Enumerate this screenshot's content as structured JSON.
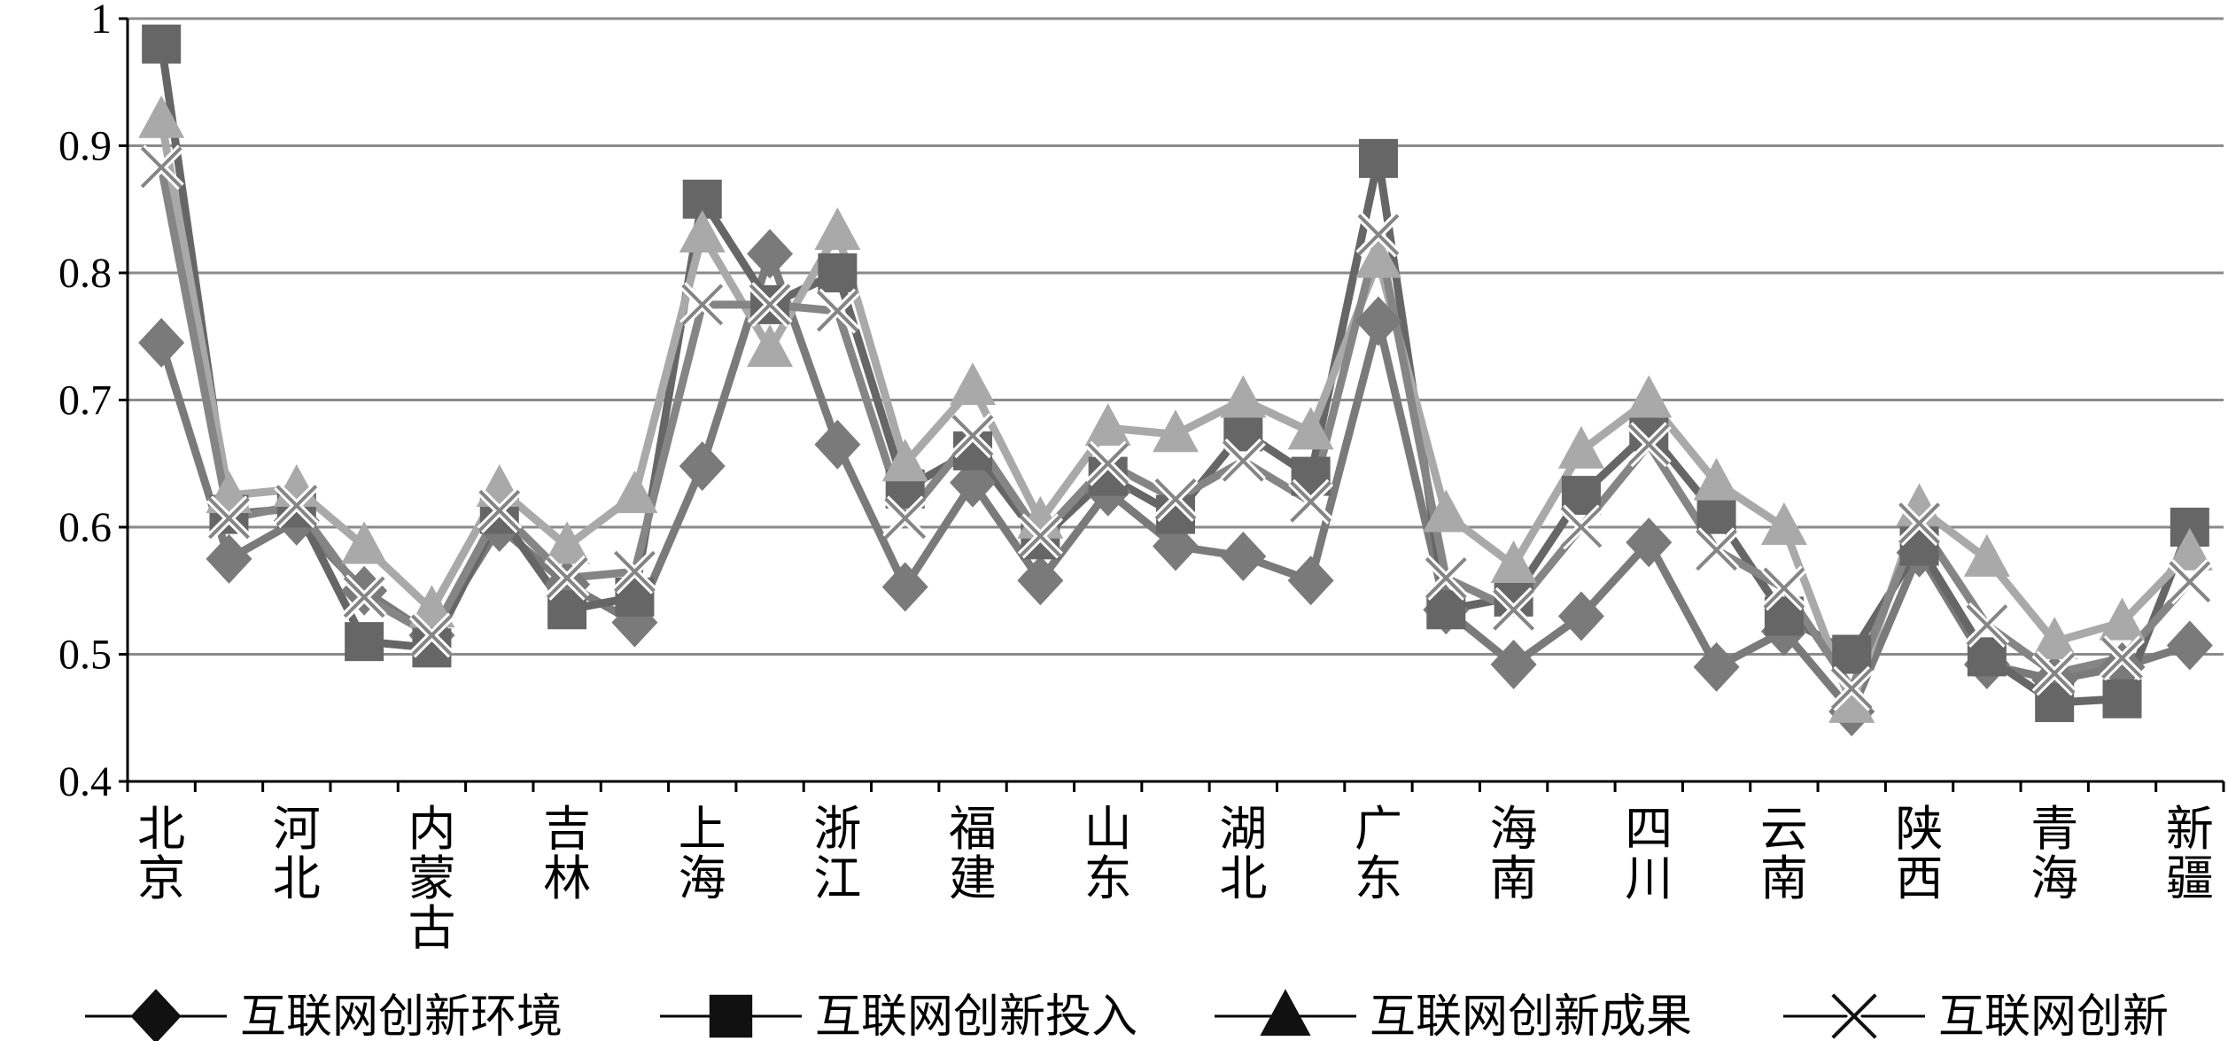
{
  "chart_data": {
    "type": "line",
    "categories": [
      "北京",
      null,
      "河北",
      null,
      "内蒙古",
      null,
      "吉林",
      null,
      "上海",
      null,
      "浙江",
      null,
      "福建",
      null,
      "山东",
      null,
      "湖北",
      null,
      "广东",
      null,
      "海南",
      null,
      "四川",
      null,
      "云南",
      null,
      "陕西",
      null,
      "青海",
      null,
      "新疆"
    ],
    "series": [
      {
        "name": "互联网创新环境",
        "color": "#7a7a7a",
        "marker": "diamond",
        "values": [
          0.745,
          0.575,
          0.605,
          0.55,
          0.515,
          0.6,
          0.555,
          0.525,
          0.648,
          0.815,
          0.665,
          0.553,
          0.635,
          0.558,
          0.628,
          0.585,
          0.577,
          0.558,
          0.762,
          0.535,
          0.492,
          0.53,
          0.588,
          0.49,
          0.518,
          0.455,
          0.58,
          0.492,
          0.48,
          0.49,
          0.507
        ]
      },
      {
        "name": "互联网创新投入",
        "color": "#666666",
        "marker": "square",
        "values": [
          0.98,
          0.61,
          0.615,
          0.51,
          0.505,
          0.61,
          0.535,
          0.545,
          0.858,
          0.775,
          0.8,
          0.63,
          0.66,
          0.59,
          0.64,
          0.61,
          0.675,
          0.64,
          0.89,
          0.535,
          0.545,
          0.625,
          0.675,
          0.61,
          0.53,
          0.5,
          0.585,
          0.498,
          0.462,
          0.465,
          0.6
        ]
      },
      {
        "name": "互联网创新成果",
        "color": "#a9a9a9",
        "marker": "triangle",
        "values": [
          0.92,
          0.625,
          0.63,
          0.585,
          0.535,
          0.63,
          0.585,
          0.625,
          0.83,
          0.74,
          0.832,
          0.65,
          0.71,
          0.605,
          0.678,
          0.673,
          0.7,
          0.675,
          0.81,
          0.61,
          0.57,
          0.66,
          0.7,
          0.635,
          0.6,
          0.46,
          0.615,
          0.575,
          0.51,
          0.525,
          0.58
        ]
      },
      {
        "name": "互联网创新",
        "color": "#858585",
        "marker": "x",
        "values": [
          0.883,
          0.607,
          0.617,
          0.545,
          0.515,
          0.613,
          0.56,
          0.565,
          0.775,
          0.775,
          0.77,
          0.607,
          0.672,
          0.593,
          0.65,
          0.622,
          0.652,
          0.62,
          0.83,
          0.56,
          0.535,
          0.6,
          0.665,
          0.582,
          0.552,
          0.473,
          0.603,
          0.523,
          0.485,
          0.497,
          0.557
        ]
      }
    ],
    "ylim": [
      0.4,
      1
    ],
    "yticks": [
      0.4,
      0.5,
      0.6,
      0.7,
      0.8,
      0.9,
      1
    ],
    "grid": true
  }
}
